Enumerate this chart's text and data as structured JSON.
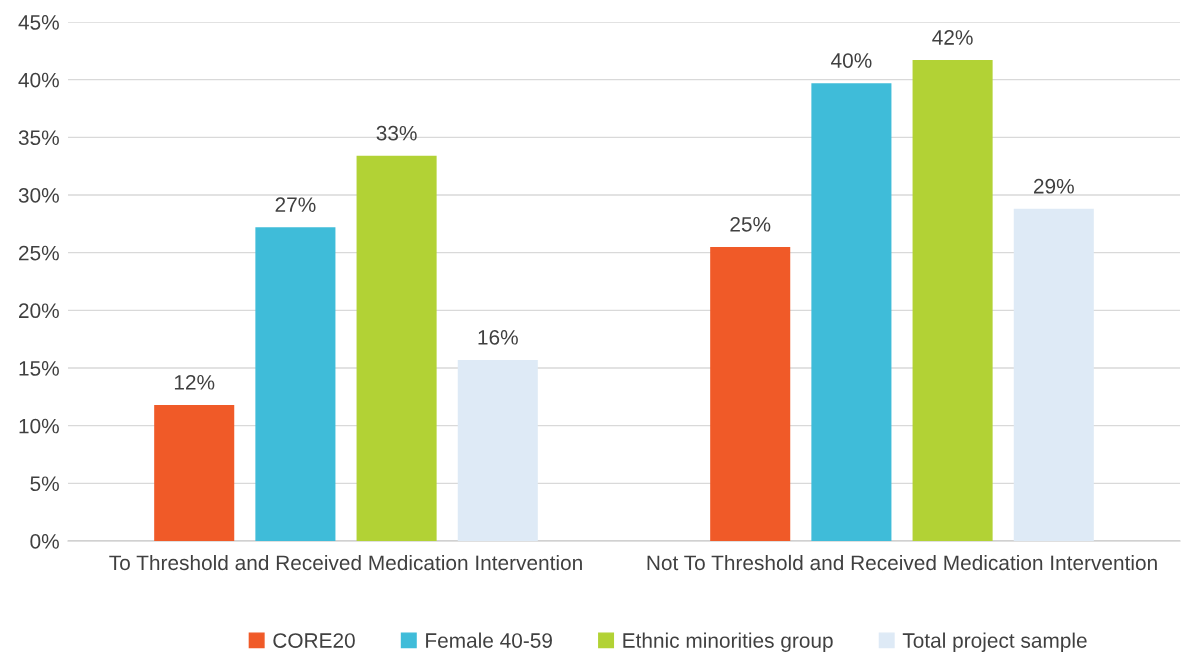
{
  "chart_data": {
    "type": "bar",
    "categories": [
      "To Threshold and Received Medication Intervention",
      "Not To Threshold and Received Medication Intervention"
    ],
    "series": [
      {
        "name": "CORE20",
        "color": "#f05a28",
        "values": [
          11.8,
          25.5
        ],
        "value_labels": [
          "12%",
          "25%"
        ]
      },
      {
        "name": "Female 40-59",
        "color": "#3fbcd9",
        "values": [
          27.2,
          39.7
        ],
        "value_labels": [
          "27%",
          "40%"
        ]
      },
      {
        "name": "Ethnic minorities group",
        "color": "#b2d235",
        "values": [
          33.4,
          41.7
        ],
        "value_labels": [
          "33%",
          "42%"
        ]
      },
      {
        "name": "Total project sample",
        "color": "#deeaf6",
        "values": [
          15.7,
          28.8
        ],
        "value_labels": [
          "16%",
          "29%"
        ]
      }
    ],
    "ylim": [
      0,
      45
    ],
    "yticks": [
      {
        "value": 0,
        "label": "0%"
      },
      {
        "value": 5,
        "label": "5%"
      },
      {
        "value": 10,
        "label": "10%"
      },
      {
        "value": 15,
        "label": "15%"
      },
      {
        "value": 20,
        "label": "20%"
      },
      {
        "value": 25,
        "label": "25%"
      },
      {
        "value": 30,
        "label": "30%"
      },
      {
        "value": 35,
        "label": "35%"
      },
      {
        "value": 40,
        "label": "40%"
      },
      {
        "value": 45,
        "label": "45%"
      }
    ],
    "grid": "y",
    "legend": "bottom"
  }
}
